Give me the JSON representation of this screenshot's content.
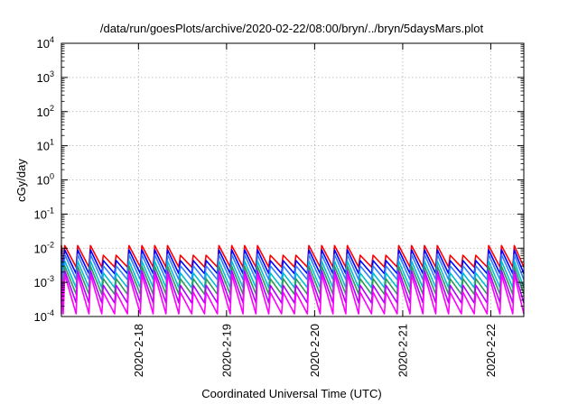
{
  "chart_data": {
    "type": "line",
    "title": "/data/run/goesPlots/archive/2020-02-22/08:00/bryn/../bryn/5daysMars.plot",
    "xlabel": "Coordinated Universal Time (UTC)",
    "ylabel": "cGy/day",
    "y_scale": "log",
    "ylim": [
      0.0001,
      10000
    ],
    "y_ticks": [
      {
        "value": 0.0001,
        "base": "10",
        "exp": "-4"
      },
      {
        "value": 0.001,
        "base": "10",
        "exp": "-3"
      },
      {
        "value": 0.01,
        "base": "10",
        "exp": "-2"
      },
      {
        "value": 0.1,
        "base": "10",
        "exp": "-1"
      },
      {
        "value": 1,
        "base": "10",
        "exp": "0"
      },
      {
        "value": 10,
        "base": "10",
        "exp": "1"
      },
      {
        "value": 100,
        "base": "10",
        "exp": "2"
      },
      {
        "value": 1000,
        "base": "10",
        "exp": "3"
      },
      {
        "value": 10000,
        "base": "10",
        "exp": "4"
      }
    ],
    "xlim": [
      "2020-02-17 03:00",
      "2020-02-22 09:00"
    ],
    "x_ticks": [
      {
        "value": "2020-02-18 00:00",
        "label": "2020-2-18"
      },
      {
        "value": "2020-02-19 00:00",
        "label": "2020-2-19"
      },
      {
        "value": "2020-02-20 00:00",
        "label": "2020-2-20"
      },
      {
        "value": "2020-02-21 00:00",
        "label": "2020-2-21"
      },
      {
        "value": "2020-02-22 00:00",
        "label": "2020-2-22"
      }
    ],
    "grid": true,
    "pattern": {
      "period_hours": 3.5,
      "profile": "sawtooth: sharp rise then linear decay each period",
      "active_noon_start": "2020-02-19 11:00",
      "active_noon_end": "2020-02-19 20:00"
    },
    "series": [
      {
        "color": "#ff0000",
        "peak": 0.012,
        "trough": 0.0028
      },
      {
        "color": "#0000ff",
        "peak": 0.009,
        "trough": 0.0018
      },
      {
        "color": "#2f7fff",
        "peak": 0.0065,
        "trough": 0.0012
      },
      {
        "color": "#00bcd4",
        "peak": 0.0042,
        "trough": 0.0007
      },
      {
        "color": "#2e9b57",
        "peak": 0.003,
        "trough": 0.00045
      },
      {
        "color": "#b400ff",
        "peak": 0.0022,
        "trough": 0.00025
      },
      {
        "color": "#ff00ff",
        "peak": 0.0017,
        "trough": 0.00012
      }
    ]
  }
}
